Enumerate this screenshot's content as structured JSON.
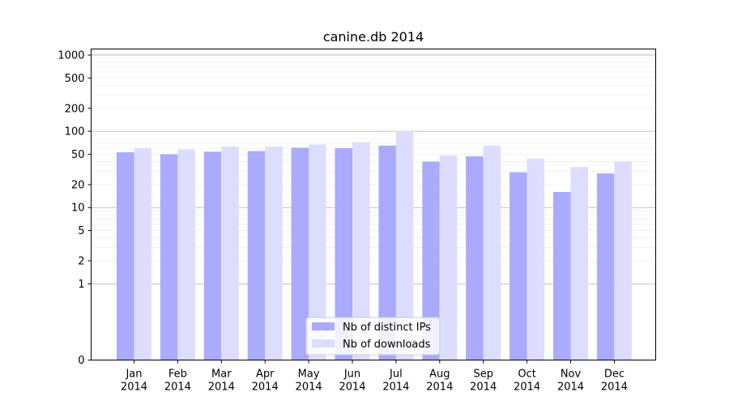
{
  "chart_data": {
    "type": "bar",
    "title": "canine.db 2014",
    "xlabel": "",
    "ylabel": "",
    "y_scale": "symlog",
    "ylim": [
      0,
      1200
    ],
    "y_ticks": [
      0,
      1,
      2,
      5,
      10,
      20,
      50,
      100,
      200,
      500,
      1000
    ],
    "grid": true,
    "legend_position": "lower-center",
    "categories": [
      "Jan\n2014",
      "Feb\n2014",
      "Mar\n2014",
      "Apr\n2014",
      "May\n2014",
      "Jun\n2014",
      "Jul\n2014",
      "Aug\n2014",
      "Sep\n2014",
      "Oct\n2014",
      "Nov\n2014",
      "Dec\n2014"
    ],
    "series": [
      {
        "name": "Nb of distinct IPs",
        "color": "#aaaaff",
        "values": [
          53,
          50,
          54,
          55,
          61,
          60,
          65,
          40,
          47,
          29,
          16,
          28
        ]
      },
      {
        "name": "Nb of downloads",
        "color": "#ddddff",
        "values": [
          60,
          58,
          63,
          63,
          67,
          72,
          100,
          48,
          65,
          44,
          34,
          40
        ]
      }
    ]
  }
}
